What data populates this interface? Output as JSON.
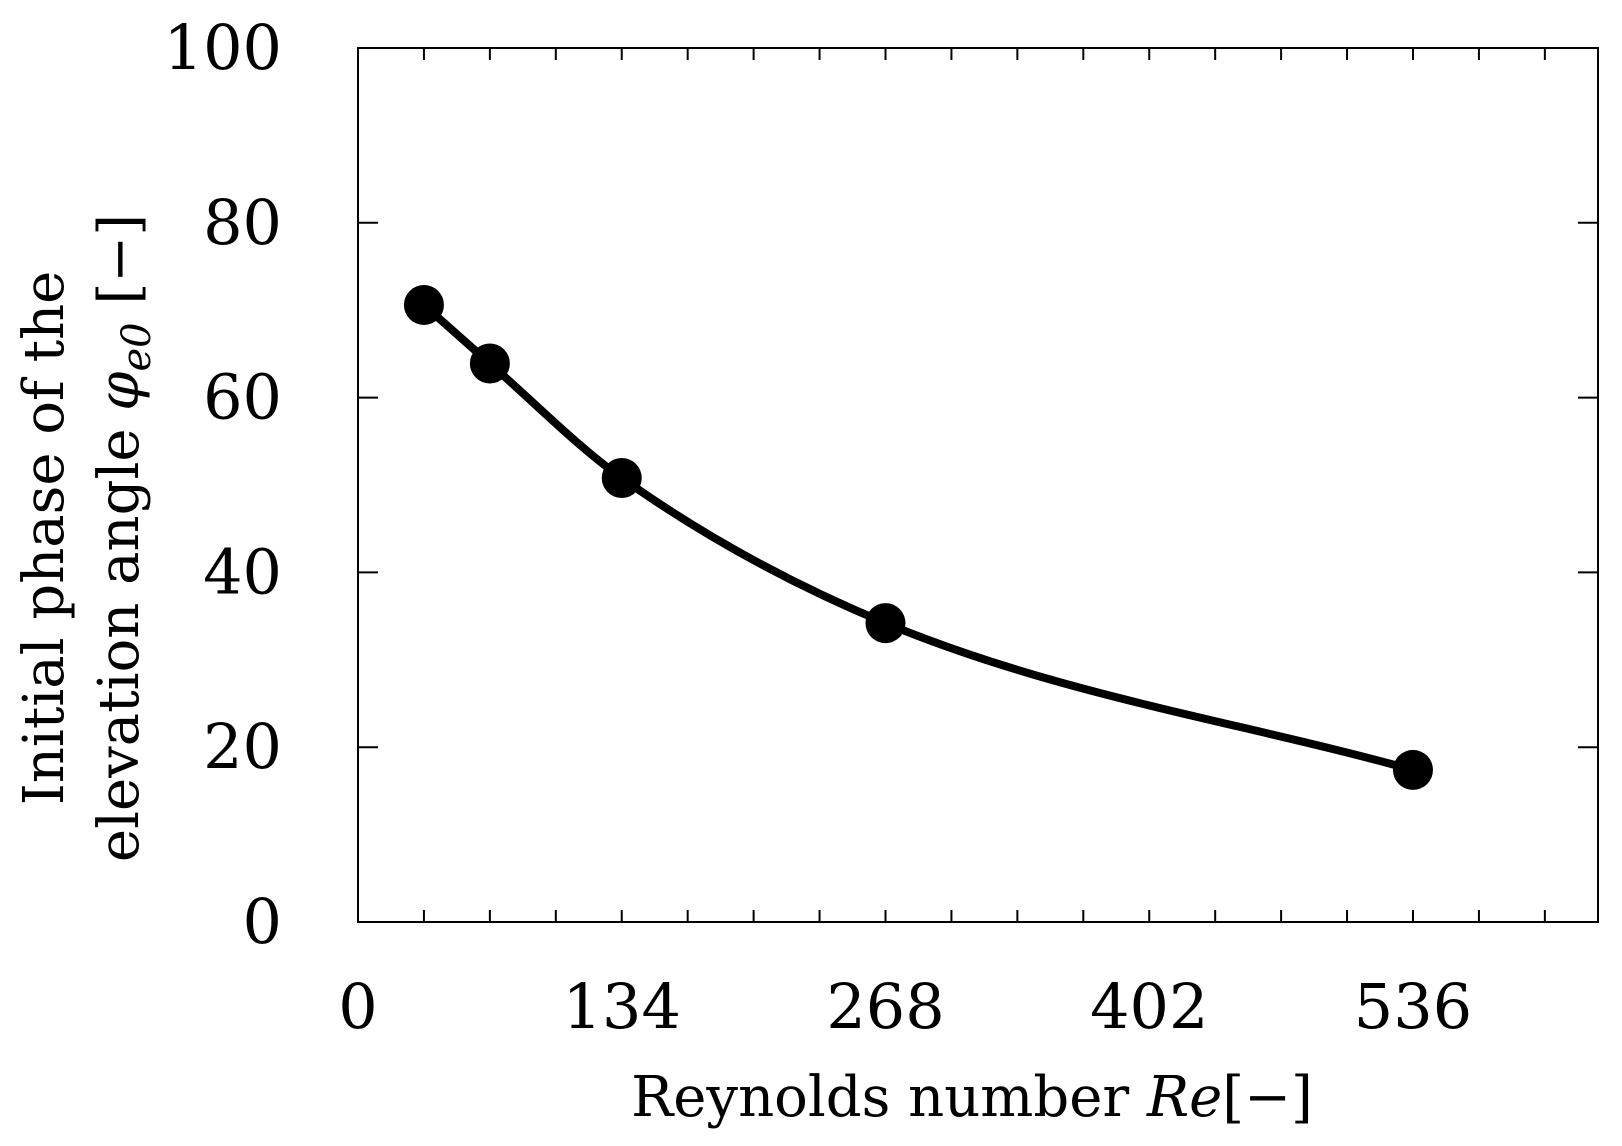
{
  "chart_data": {
    "type": "line",
    "title": "",
    "xlabel": {
      "text": "Reynolds number ",
      "math": "Re",
      "unit": "[−]"
    },
    "ylabel": {
      "line1": "Initial phase of the",
      "line2_text": "elevation angle ",
      "line2_math": "φ",
      "line2_sub": "e0",
      "line2_unit": " [−]"
    },
    "xlim": [
      0,
      630
    ],
    "ylim": [
      0,
      100
    ],
    "xticks": [
      0,
      134,
      268,
      402,
      536
    ],
    "xtick_labels": [
      "0",
      "134",
      "268",
      "402",
      "536"
    ],
    "x_minor_step": 33.5,
    "yticks": [
      0,
      20,
      40,
      60,
      80,
      100
    ],
    "ytick_labels": [
      "0",
      "20",
      "40",
      "60",
      "80",
      "100"
    ],
    "grid": false,
    "series": [
      {
        "x": [
          33.5,
          67,
          134,
          268,
          536
        ],
        "y": [
          70.6,
          63.9,
          50.8,
          34.2,
          17.4
        ],
        "color": "#000000",
        "marker": "circle"
      }
    ]
  }
}
